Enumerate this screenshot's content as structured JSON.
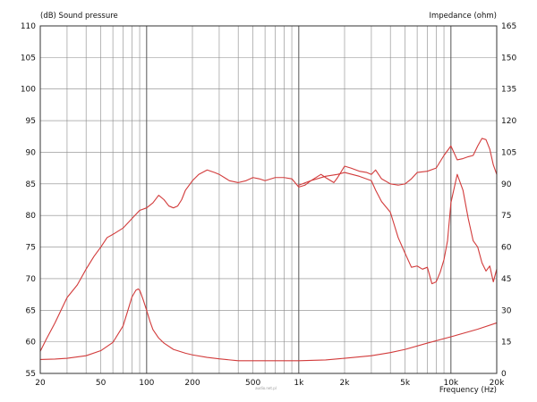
{
  "chart_data": {
    "type": "line",
    "left_axis_title": "(dB)  Sound pressure",
    "right_axis_title": "Impedance  (ohm)",
    "x_axis_title": "Frequency  (Hz)",
    "x_scale": "log",
    "xlim": [
      20,
      20000
    ],
    "ylim_left": [
      55,
      110
    ],
    "ylim_right": [
      0,
      165
    ],
    "grid": true,
    "watermark": "audio.net.pl",
    "x_ticks": [
      {
        "value": 20,
        "label": "20"
      },
      {
        "value": 50,
        "label": "50"
      },
      {
        "value": 100,
        "label": "100"
      },
      {
        "value": 200,
        "label": "200"
      },
      {
        "value": 500,
        "label": "500"
      },
      {
        "value": 1000,
        "label": "1k"
      },
      {
        "value": 2000,
        "label": "2k"
      },
      {
        "value": 5000,
        "label": "5k"
      },
      {
        "value": 10000,
        "label": "10k"
      },
      {
        "value": 20000,
        "label": "20k"
      }
    ],
    "y_ticks_left": [
      55,
      60,
      65,
      70,
      75,
      80,
      85,
      90,
      95,
      100,
      105,
      110
    ],
    "y_ticks_right": [
      0,
      15,
      30,
      45,
      60,
      75,
      90,
      105,
      120,
      135,
      150,
      165
    ],
    "colors": {
      "curve": "#d23b3b",
      "grid": "#888888",
      "frame": "#333333"
    },
    "series": [
      {
        "axis": "left",
        "x": [
          20,
          22,
          25,
          28,
          30,
          35,
          40,
          45,
          50,
          55,
          60,
          70,
          80,
          90,
          100,
          110,
          120,
          130,
          140,
          150,
          160,
          170,
          180,
          200,
          220,
          250,
          280,
          300,
          350,
          400,
          450,
          500,
          550,
          600,
          700,
          800,
          900,
          1000,
          1100,
          1200,
          1400,
          1500,
          1700,
          1800,
          2000,
          2200,
          2500,
          2800,
          3000,
          3200,
          3500,
          4000,
          4500,
          5000,
          5500,
          6000,
          7000,
          8000,
          9000,
          10000,
          11000,
          12000,
          13000,
          14000,
          15000,
          16000,
          17000,
          18000,
          19000,
          20000
        ],
        "y": [
          58.5,
          60.5,
          63,
          65.5,
          67,
          69,
          71.5,
          73.5,
          75,
          76.5,
          77,
          78,
          79.5,
          80.8,
          81.2,
          82,
          83.2,
          82.5,
          81.5,
          81.2,
          81.5,
          82.5,
          84,
          85.5,
          86.5,
          87.2,
          86.8,
          86.5,
          85.5,
          85.2,
          85.5,
          86,
          85.8,
          85.5,
          86,
          86,
          85.8,
          84.5,
          84.8,
          85.5,
          86.5,
          86,
          85.2,
          86,
          87.8,
          87.5,
          87,
          86.8,
          86.5,
          87.2,
          85.8,
          85,
          84.8,
          85,
          85.8,
          86.8,
          87,
          87.5,
          89.5,
          91,
          88.8,
          89,
          89.3,
          89.5,
          91,
          92.2,
          92,
          90.5,
          88,
          86.5
        ]
      },
      {
        "axis": "left",
        "x": [
          1000,
          1200,
          1500,
          1800,
          2000,
          2500,
          3000,
          3200,
          3500,
          4000,
          4500,
          5000,
          5500,
          6000,
          6500,
          7000,
          7500,
          8000,
          8500,
          9000,
          9500,
          10000,
          11000,
          12000,
          13000,
          14000,
          15000,
          16000,
          17000,
          18000,
          19000,
          20000
        ],
        "y": [
          84.8,
          85.5,
          86.2,
          86.5,
          86.8,
          86.2,
          85.5,
          84,
          82.2,
          80.5,
          76.5,
          74,
          71.8,
          72,
          71.5,
          71.8,
          69.2,
          69.5,
          71,
          73,
          76,
          82,
          86.5,
          84,
          79.5,
          76,
          75,
          72.5,
          71.2,
          72,
          69.5,
          71.5
        ]
      },
      {
        "axis": "right",
        "x": [
          20,
          25,
          30,
          40,
          50,
          60,
          70,
          75,
          80,
          85,
          88,
          90,
          92,
          95,
          100,
          105,
          110,
          120,
          130,
          150,
          180,
          200,
          250,
          300,
          400,
          500,
          700,
          1000,
          1500,
          2000,
          3000,
          4000,
          5000,
          7000,
          10000,
          15000,
          20000
        ],
        "y": [
          6.6,
          6.8,
          7.2,
          8.4,
          10.8,
          14.7,
          22.5,
          29.5,
          36.2,
          39.5,
          40.1,
          39.5,
          37.7,
          34.9,
          30,
          24.9,
          20.8,
          16.8,
          14.4,
          11.4,
          9.6,
          8.8,
          7.6,
          6.9,
          6,
          6,
          6,
          6,
          6.4,
          7.2,
          8.4,
          9.9,
          11.4,
          14.4,
          17.4,
          21,
          24
        ]
      }
    ]
  }
}
